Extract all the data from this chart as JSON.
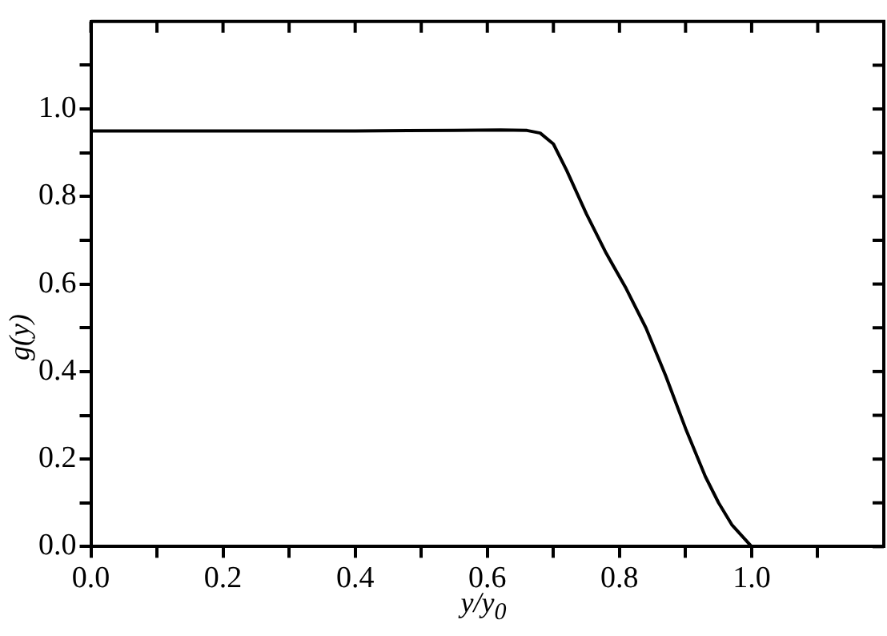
{
  "chart_data": {
    "type": "line",
    "xlabel": "y/y$_{0}$",
    "ylabel": "g(y)",
    "x": [
      0,
      0.2,
      0.4,
      0.55,
      0.62,
      0.66,
      0.68,
      0.7,
      0.72,
      0.75,
      0.78,
      0.81,
      0.84,
      0.87,
      0.9,
      0.93,
      0.95,
      0.97,
      1.0
    ],
    "series": [
      {
        "color": "#000000",
        "values": [
          0.95,
          0.95,
          0.95,
          0.951,
          0.952,
          0.951,
          0.945,
          0.92,
          0.86,
          0.76,
          0.67,
          0.59,
          0.5,
          0.39,
          0.27,
          0.16,
          0.1,
          0.05,
          0
        ]
      }
    ],
    "xlim": [
      0,
      1.2
    ],
    "ylim": [
      0,
      1.2
    ],
    "xticks": [
      {
        "value": 0,
        "label": "0.0"
      },
      {
        "value": 0.1,
        "label": null
      },
      {
        "value": 0.2,
        "label": "0.2"
      },
      {
        "value": 0.3,
        "label": null
      },
      {
        "value": 0.4,
        "label": "0.4"
      },
      {
        "value": 0.5,
        "label": null
      },
      {
        "value": 0.6,
        "label": "0.6"
      },
      {
        "value": 0.7,
        "label": null
      },
      {
        "value": 0.8,
        "label": "0.8"
      },
      {
        "value": 0.9,
        "label": null
      },
      {
        "value": 1,
        "label": "1.0"
      },
      {
        "value": 1.1,
        "label": null
      }
    ],
    "yticks": [
      {
        "value": 0,
        "label": "0.0"
      },
      {
        "value": 0.1,
        "label": null
      },
      {
        "value": 0.2,
        "label": "0.2"
      },
      {
        "value": 0.3,
        "label": null
      },
      {
        "value": 0.4,
        "label": "0.4"
      },
      {
        "value": 0.5,
        "label": null
      },
      {
        "value": 0.6,
        "label": "0.6"
      },
      {
        "value": 0.7,
        "label": null
      },
      {
        "value": 0.8,
        "label": "0.8"
      },
      {
        "value": 0.9,
        "label": null
      },
      {
        "value": 1,
        "label": "1.0"
      },
      {
        "value": 1.1,
        "label": null
      }
    ],
    "grid": false,
    "legend": false,
    "marker": "none",
    "line_style": "solid"
  }
}
